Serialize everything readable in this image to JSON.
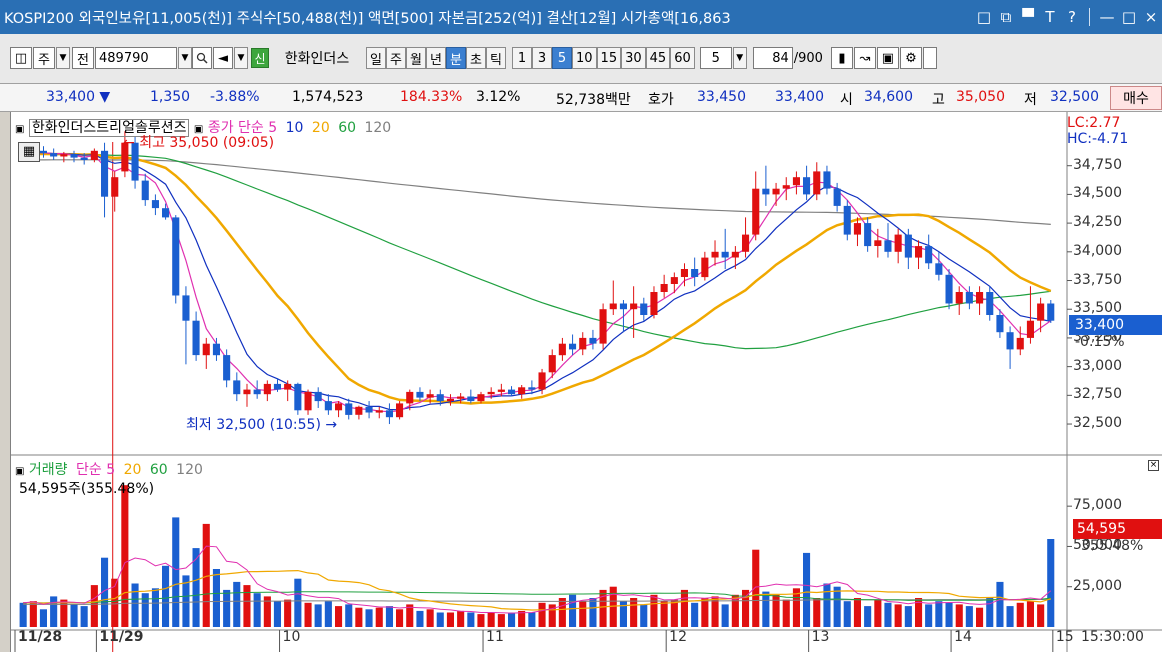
{
  "window": {
    "title": "KOSPI200 외국인보유[11,005(천)] 주식수[50,488(천)] 액면[500] 자본금[252(억)] 결산[12월] 시가총액[16,863",
    "buttons": [
      "□",
      "□",
      "▀",
      "T",
      "?",
      "—",
      "□",
      "×"
    ]
  },
  "toolbar": {
    "type1": "주",
    "type2": "전",
    "code": "489790",
    "search_icon": "search-icon",
    "sound_icon": "speaker-icon",
    "new_badge": "신",
    "stock_name": "한화인더스",
    "periods": [
      "일",
      "주",
      "월",
      "년",
      "분",
      "초",
      "틱"
    ],
    "active_period": "분",
    "minutes": [
      "1",
      "3",
      "5",
      "10",
      "15",
      "30",
      "45",
      "60"
    ],
    "active_minute": "5",
    "minute_select": "5",
    "count": "84",
    "count_total": "/900"
  },
  "quote": {
    "price": "33,400 ▼",
    "change": "1,350",
    "change_pct": "-3.88%",
    "volume": "1,574,523",
    "vol_ratio": "184.33%",
    "turnover": "3.12%",
    "amount": "52,738백만",
    "ask_label": "호가",
    "ask": "33,450",
    "bid": "33,400",
    "open_label": "시",
    "open": "34,600",
    "high_label": "고",
    "high": "35,050",
    "low_label": "저",
    "low": "32,500",
    "buy": "매수"
  },
  "price_panel": {
    "stock_title": "한화인더스트리얼솔루션즈",
    "ma_label": "종가 단순",
    "ma_periods": [
      "5",
      "10",
      "20",
      "60",
      "120"
    ],
    "lc": "LC:2.77",
    "hc": "HC:-4.71",
    "high_note": "최고 35,050 (09:05)",
    "low_note": "최저 32,500 (10:55)",
    "ticks": [
      "34,750",
      "34,500",
      "34,250",
      "34,000",
      "33,750",
      "33,500",
      "33,250",
      "33,000",
      "32,750",
      "32,500"
    ],
    "current": "33,400",
    "current_pct": "-0.15%"
  },
  "volume_panel": {
    "title": "거래량",
    "ma_label": "단순",
    "ma_periods": [
      "5",
      "20",
      "60",
      "120"
    ],
    "last": "54,595주(355.48%)",
    "ticks": [
      "75,000",
      "50,000",
      "25,000"
    ],
    "current": "54,595",
    "current_pct": "355.48%"
  },
  "x_axis": {
    "labels": [
      "11/28",
      "11/29",
      "10",
      "11",
      "12",
      "13",
      "14",
      "15"
    ],
    "time": "15:30:00"
  },
  "colors": {
    "up": "#e01010",
    "down": "#1a5fd0",
    "ma5": "#e030b0",
    "ma10": "#1030c0",
    "ma20": "#f0a800",
    "ma60": "#20a040",
    "ma120": "#808080"
  },
  "chart_data": {
    "type": "candlestick",
    "interval": "5분",
    "price_ylim": [
      32300,
      35000
    ],
    "candles": [
      {
        "o": 34880,
        "h": 34900,
        "l": 34800,
        "c": 34850
      },
      {
        "o": 34850,
        "h": 34900,
        "l": 34820,
        "c": 34880
      },
      {
        "o": 34880,
        "h": 34920,
        "l": 34820,
        "c": 34860
      },
      {
        "o": 34860,
        "h": 34900,
        "l": 34800,
        "c": 34830
      },
      {
        "o": 34830,
        "h": 34870,
        "l": 34780,
        "c": 34850
      },
      {
        "o": 34850,
        "h": 34880,
        "l": 34780,
        "c": 34820
      },
      {
        "o": 34820,
        "h": 34860,
        "l": 34760,
        "c": 34800
      },
      {
        "o": 34800,
        "h": 34900,
        "l": 34780,
        "c": 34880
      },
      {
        "o": 34880,
        "h": 34950,
        "l": 34300,
        "c": 34480
      },
      {
        "o": 34480,
        "h": 34700,
        "l": 34350,
        "c": 34650
      },
      {
        "o": 34700,
        "h": 35050,
        "l": 34650,
        "c": 34950
      },
      {
        "o": 34950,
        "h": 35000,
        "l": 34550,
        "c": 34620
      },
      {
        "o": 34620,
        "h": 34680,
        "l": 34400,
        "c": 34450
      },
      {
        "o": 34450,
        "h": 34500,
        "l": 34320,
        "c": 34380
      },
      {
        "o": 34380,
        "h": 34420,
        "l": 34280,
        "c": 34300
      },
      {
        "o": 34300,
        "h": 34320,
        "l": 33550,
        "c": 33620
      },
      {
        "o": 33620,
        "h": 33700,
        "l": 33020,
        "c": 33400
      },
      {
        "o": 33400,
        "h": 33480,
        "l": 33050,
        "c": 33100
      },
      {
        "o": 33100,
        "h": 33250,
        "l": 32980,
        "c": 33200
      },
      {
        "o": 33200,
        "h": 33250,
        "l": 33050,
        "c": 33100
      },
      {
        "o": 33100,
        "h": 33150,
        "l": 32820,
        "c": 32880
      },
      {
        "o": 32880,
        "h": 32950,
        "l": 32700,
        "c": 32760
      },
      {
        "o": 32760,
        "h": 32850,
        "l": 32650,
        "c": 32800
      },
      {
        "o": 32800,
        "h": 32880,
        "l": 32720,
        "c": 32760
      },
      {
        "o": 32760,
        "h": 32880,
        "l": 32700,
        "c": 32850
      },
      {
        "o": 32850,
        "h": 32900,
        "l": 32780,
        "c": 32800
      },
      {
        "o": 32800,
        "h": 32880,
        "l": 32700,
        "c": 32850
      },
      {
        "o": 32850,
        "h": 32860,
        "l": 32580,
        "c": 32620
      },
      {
        "o": 32620,
        "h": 32800,
        "l": 32580,
        "c": 32780
      },
      {
        "o": 32780,
        "h": 32820,
        "l": 32640,
        "c": 32700
      },
      {
        "o": 32700,
        "h": 32760,
        "l": 32580,
        "c": 32620
      },
      {
        "o": 32620,
        "h": 32700,
        "l": 32560,
        "c": 32680
      },
      {
        "o": 32680,
        "h": 32720,
        "l": 32540,
        "c": 32580
      },
      {
        "o": 32580,
        "h": 32660,
        "l": 32540,
        "c": 32650
      },
      {
        "o": 32650,
        "h": 32700,
        "l": 32550,
        "c": 32600
      },
      {
        "o": 32600,
        "h": 32650,
        "l": 32550,
        "c": 32620
      },
      {
        "o": 32620,
        "h": 32680,
        "l": 32500,
        "c": 32560
      },
      {
        "o": 32560,
        "h": 32700,
        "l": 32540,
        "c": 32680
      },
      {
        "o": 32680,
        "h": 32800,
        "l": 32620,
        "c": 32780
      },
      {
        "o": 32780,
        "h": 32820,
        "l": 32700,
        "c": 32730
      },
      {
        "o": 32730,
        "h": 32800,
        "l": 32680,
        "c": 32760
      },
      {
        "o": 32760,
        "h": 32800,
        "l": 32660,
        "c": 32700
      },
      {
        "o": 32700,
        "h": 32760,
        "l": 32660,
        "c": 32720
      },
      {
        "o": 32720,
        "h": 32770,
        "l": 32680,
        "c": 32740
      },
      {
        "o": 32740,
        "h": 32800,
        "l": 32680,
        "c": 32700
      },
      {
        "o": 32700,
        "h": 32780,
        "l": 32680,
        "c": 32760
      },
      {
        "o": 32760,
        "h": 32820,
        "l": 32720,
        "c": 32780
      },
      {
        "o": 32780,
        "h": 32850,
        "l": 32740,
        "c": 32800
      },
      {
        "o": 32800,
        "h": 32830,
        "l": 32740,
        "c": 32760
      },
      {
        "o": 32760,
        "h": 32840,
        "l": 32720,
        "c": 32820
      },
      {
        "o": 32820,
        "h": 32880,
        "l": 32760,
        "c": 32800
      },
      {
        "o": 32800,
        "h": 32980,
        "l": 32760,
        "c": 32950
      },
      {
        "o": 32950,
        "h": 33150,
        "l": 32900,
        "c": 33100
      },
      {
        "o": 33100,
        "h": 33250,
        "l": 33050,
        "c": 33200
      },
      {
        "o": 33200,
        "h": 33280,
        "l": 33100,
        "c": 33150
      },
      {
        "o": 33150,
        "h": 33300,
        "l": 33100,
        "c": 33250
      },
      {
        "o": 33250,
        "h": 33320,
        "l": 33150,
        "c": 33200
      },
      {
        "o": 33200,
        "h": 33550,
        "l": 33150,
        "c": 33500
      },
      {
        "o": 33500,
        "h": 33750,
        "l": 33450,
        "c": 33550
      },
      {
        "o": 33550,
        "h": 33580,
        "l": 33300,
        "c": 33500
      },
      {
        "o": 33500,
        "h": 33700,
        "l": 33250,
        "c": 33550
      },
      {
        "o": 33550,
        "h": 33600,
        "l": 33400,
        "c": 33450
      },
      {
        "o": 33450,
        "h": 33700,
        "l": 33420,
        "c": 33650
      },
      {
        "o": 33650,
        "h": 33800,
        "l": 33600,
        "c": 33720
      },
      {
        "o": 33720,
        "h": 33820,
        "l": 33640,
        "c": 33780
      },
      {
        "o": 33780,
        "h": 33900,
        "l": 33700,
        "c": 33850
      },
      {
        "o": 33850,
        "h": 33950,
        "l": 33700,
        "c": 33780
      },
      {
        "o": 33780,
        "h": 34000,
        "l": 33750,
        "c": 33950
      },
      {
        "o": 33950,
        "h": 34100,
        "l": 33880,
        "c": 34000
      },
      {
        "o": 34000,
        "h": 34200,
        "l": 33850,
        "c": 33950
      },
      {
        "o": 33950,
        "h": 34050,
        "l": 33850,
        "c": 34000
      },
      {
        "o": 34000,
        "h": 34300,
        "l": 33950,
        "c": 34150
      },
      {
        "o": 34150,
        "h": 34700,
        "l": 34100,
        "c": 34550
      },
      {
        "o": 34550,
        "h": 34750,
        "l": 34400,
        "c": 34500
      },
      {
        "o": 34500,
        "h": 34600,
        "l": 34400,
        "c": 34550
      },
      {
        "o": 34550,
        "h": 34650,
        "l": 34450,
        "c": 34580
      },
      {
        "o": 34580,
        "h": 34700,
        "l": 34500,
        "c": 34650
      },
      {
        "o": 34650,
        "h": 34750,
        "l": 34450,
        "c": 34500
      },
      {
        "o": 34500,
        "h": 34780,
        "l": 34450,
        "c": 34700
      },
      {
        "o": 34700,
        "h": 34750,
        "l": 34500,
        "c": 34550
      },
      {
        "o": 34550,
        "h": 34600,
        "l": 34350,
        "c": 34400
      },
      {
        "o": 34400,
        "h": 34450,
        "l": 34100,
        "c": 34150
      },
      {
        "o": 34150,
        "h": 34300,
        "l": 34050,
        "c": 34250
      },
      {
        "o": 34250,
        "h": 34300,
        "l": 34000,
        "c": 34050
      },
      {
        "o": 34050,
        "h": 34200,
        "l": 33950,
        "c": 34100
      },
      {
        "o": 34100,
        "h": 34250,
        "l": 33950,
        "c": 34000
      },
      {
        "o": 34000,
        "h": 34200,
        "l": 33900,
        "c": 34150
      },
      {
        "o": 34150,
        "h": 34200,
        "l": 33850,
        "c": 33950
      },
      {
        "o": 33950,
        "h": 34100,
        "l": 33850,
        "c": 34050
      },
      {
        "o": 34050,
        "h": 34150,
        "l": 33850,
        "c": 33900
      },
      {
        "o": 33900,
        "h": 34000,
        "l": 33750,
        "c": 33800
      },
      {
        "o": 33800,
        "h": 33850,
        "l": 33500,
        "c": 33550
      },
      {
        "o": 33550,
        "h": 33700,
        "l": 33450,
        "c": 33650
      },
      {
        "o": 33650,
        "h": 33700,
        "l": 33500,
        "c": 33550
      },
      {
        "o": 33550,
        "h": 33700,
        "l": 33450,
        "c": 33650
      },
      {
        "o": 33650,
        "h": 33700,
        "l": 33400,
        "c": 33450
      },
      {
        "o": 33450,
        "h": 33500,
        "l": 33250,
        "c": 33300
      },
      {
        "o": 33300,
        "h": 33350,
        "l": 32980,
        "c": 33150
      },
      {
        "o": 33150,
        "h": 33350,
        "l": 33100,
        "c": 33250
      },
      {
        "o": 33250,
        "h": 33700,
        "l": 33200,
        "c": 33400
      },
      {
        "o": 33400,
        "h": 33600,
        "l": 33300,
        "c": 33550
      },
      {
        "o": 33550,
        "h": 33580,
        "l": 33380,
        "c": 33400
      }
    ],
    "volume_ylim": [
      0,
      90000
    ],
    "volume": [
      15000,
      16000,
      11000,
      19000,
      17000,
      14000,
      13000,
      26000,
      43000,
      30000,
      88000,
      27000,
      21000,
      24000,
      38000,
      68000,
      32000,
      49000,
      64000,
      36000,
      23000,
      28000,
      26000,
      21000,
      19000,
      16000,
      17000,
      30000,
      15000,
      14000,
      16000,
      13000,
      14000,
      12000,
      11000,
      12000,
      13000,
      11000,
      14000,
      10000,
      11000,
      9000,
      9000,
      10000,
      9000,
      8000,
      9000,
      8000,
      9000,
      10000,
      9000,
      15000,
      14000,
      18000,
      20000,
      16000,
      18000,
      23000,
      25000,
      16000,
      18000,
      14000,
      20000,
      16000,
      17000,
      23000,
      15000,
      18000,
      19000,
      14000,
      20000,
      23000,
      48000,
      22000,
      20000,
      17000,
      24000,
      46000,
      18000,
      27000,
      25000,
      16000,
      18000,
      13000,
      17000,
      15000,
      14000,
      13000,
      18000,
      14000,
      16000,
      15000,
      14000,
      13000,
      12000,
      18000,
      28000,
      13000,
      15000,
      16000,
      14000,
      54595
    ]
  }
}
